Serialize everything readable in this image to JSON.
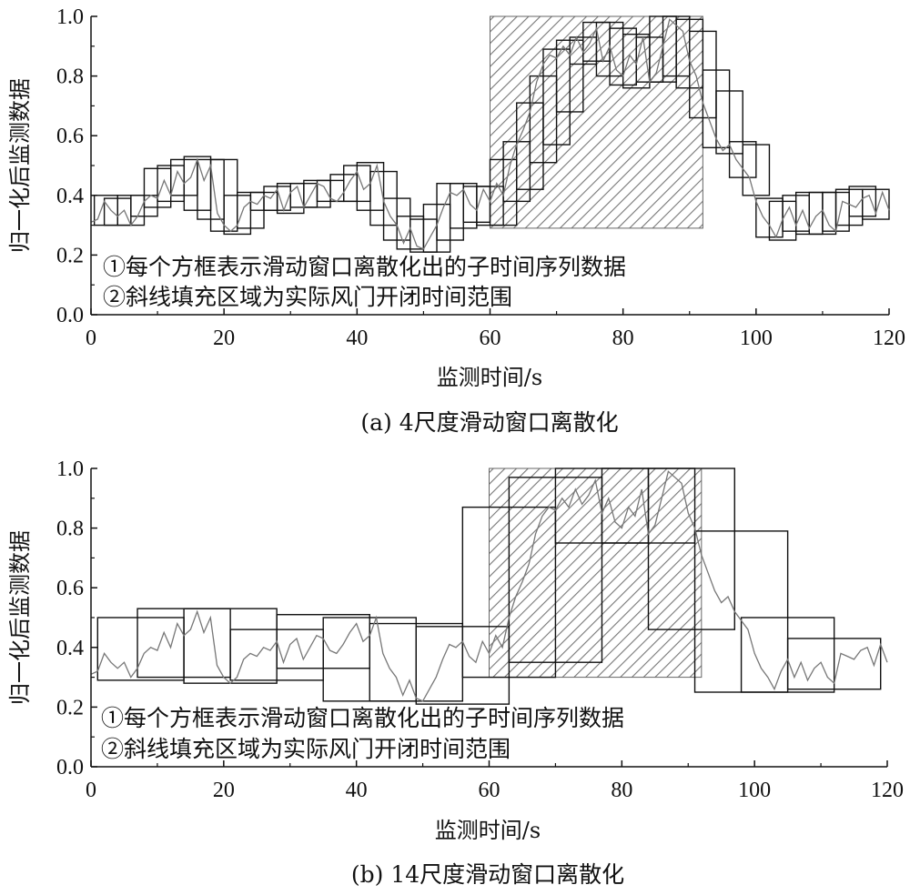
{
  "figure_captions": [
    "(a) 4尺度滑动窗口离散化",
    "(b) 14尺度滑动窗口离散化"
  ],
  "chart_data": [
    {
      "type": "line",
      "caption": "(a) 4尺度滑动窗口离散化",
      "xlabel": "监测时间/s",
      "ylabel": "归一化后监测数据",
      "xlim": [
        0,
        120
      ],
      "ylim": [
        0.0,
        1.0
      ],
      "x_ticks": [
        0,
        20,
        40,
        60,
        80,
        100,
        120
      ],
      "y_ticks": [
        "0.0",
        "0.2",
        "0.4",
        "0.6",
        "0.8",
        "1.0"
      ],
      "annotations": [
        "①每个方框表示滑动窗口离散化出的子时间序列数据",
        "②斜线填充区域为实际风门开闭时间范围"
      ],
      "hatch_region": {
        "x": [
          60,
          92
        ],
        "y": [
          0.29,
          1.0
        ]
      },
      "series": [
        {
          "x": [
            0,
            1,
            2,
            3,
            4,
            5,
            6,
            7,
            8,
            9,
            10,
            11,
            12,
            13,
            14,
            15,
            16,
            17,
            18,
            19,
            20,
            21,
            22,
            23,
            24,
            25,
            26,
            27,
            28,
            29,
            30,
            31,
            32,
            33,
            34,
            35,
            36,
            37,
            38,
            39,
            40,
            41,
            42,
            43,
            44,
            45,
            46,
            47,
            48,
            49,
            50,
            51,
            52,
            53,
            54,
            55,
            56,
            57,
            58,
            59,
            60,
            61,
            62,
            63,
            64,
            65,
            66,
            67,
            68,
            69,
            70,
            71,
            72,
            73,
            74,
            75,
            76,
            77,
            78,
            79,
            80,
            81,
            82,
            83,
            84,
            85,
            86,
            87,
            88,
            89,
            90,
            91,
            92,
            93,
            94,
            95,
            96,
            97,
            98,
            99,
            100,
            101,
            102,
            103,
            104,
            105,
            106,
            107,
            108,
            109,
            110,
            111,
            112,
            113,
            114,
            115,
            116,
            117,
            118,
            119,
            120
          ],
          "y": [
            0.31,
            0.32,
            0.38,
            0.35,
            0.33,
            0.35,
            0.3,
            0.33,
            0.38,
            0.4,
            0.39,
            0.45,
            0.4,
            0.48,
            0.44,
            0.46,
            0.52,
            0.45,
            0.5,
            0.34,
            0.3,
            0.28,
            0.3,
            0.36,
            0.38,
            0.37,
            0.4,
            0.39,
            0.42,
            0.35,
            0.41,
            0.43,
            0.36,
            0.4,
            0.44,
            0.43,
            0.39,
            0.38,
            0.41,
            0.45,
            0.48,
            0.42,
            0.44,
            0.5,
            0.38,
            0.33,
            0.3,
            0.24,
            0.29,
            0.23,
            0.22,
            0.26,
            0.3,
            0.36,
            0.41,
            0.4,
            0.42,
            0.37,
            0.35,
            0.42,
            0.38,
            0.44,
            0.4,
            0.5,
            0.57,
            0.62,
            0.68,
            0.78,
            0.84,
            0.87,
            0.86,
            0.9,
            0.87,
            0.93,
            0.88,
            0.91,
            0.96,
            0.85,
            0.9,
            0.82,
            0.8,
            0.87,
            0.84,
            0.93,
            0.78,
            0.81,
            0.9,
            0.99,
            0.97,
            0.95,
            0.85,
            0.8,
            0.71,
            0.65,
            0.59,
            0.55,
            0.57,
            0.52,
            0.49,
            0.46,
            0.38,
            0.33,
            0.3,
            0.26,
            0.32,
            0.36,
            0.3,
            0.35,
            0.29,
            0.33,
            0.35,
            0.3,
            0.28,
            0.38,
            0.37,
            0.36,
            0.39,
            0.4,
            0.34,
            0.41,
            0.35
          ]
        }
      ],
      "windows": [
        {
          "x0": 0.5,
          "x1": 4,
          "y0": 0.3,
          "y1": 0.4
        },
        {
          "x0": 2,
          "x1": 6,
          "y0": 0.3,
          "y1": 0.39
        },
        {
          "x0": 4,
          "x1": 8,
          "y0": 0.3,
          "y1": 0.4
        },
        {
          "x0": 6,
          "x1": 10,
          "y0": 0.33,
          "y1": 0.4
        },
        {
          "x0": 8,
          "x1": 12,
          "y0": 0.36,
          "y1": 0.49
        },
        {
          "x0": 10,
          "x1": 14,
          "y0": 0.38,
          "y1": 0.5
        },
        {
          "x0": 12,
          "x1": 16,
          "y0": 0.4,
          "y1": 0.52
        },
        {
          "x0": 14,
          "x1": 18,
          "y0": 0.35,
          "y1": 0.53
        },
        {
          "x0": 16,
          "x1": 20,
          "y0": 0.32,
          "y1": 0.52
        },
        {
          "x0": 18,
          "x1": 22,
          "y0": 0.28,
          "y1": 0.52
        },
        {
          "x0": 20,
          "x1": 24,
          "y0": 0.27,
          "y1": 0.4
        },
        {
          "x0": 22,
          "x1": 26,
          "y0": 0.29,
          "y1": 0.41
        },
        {
          "x0": 24,
          "x1": 28,
          "y0": 0.35,
          "y1": 0.41
        },
        {
          "x0": 26,
          "x1": 30,
          "y0": 0.35,
          "y1": 0.43
        },
        {
          "x0": 28,
          "x1": 32,
          "y0": 0.34,
          "y1": 0.44
        },
        {
          "x0": 30,
          "x1": 34,
          "y0": 0.36,
          "y1": 0.44
        },
        {
          "x0": 32,
          "x1": 36,
          "y0": 0.36,
          "y1": 0.45
        },
        {
          "x0": 34,
          "x1": 38,
          "y0": 0.38,
          "y1": 0.45
        },
        {
          "x0": 36,
          "x1": 40,
          "y0": 0.38,
          "y1": 0.47
        },
        {
          "x0": 38,
          "x1": 42,
          "y0": 0.38,
          "y1": 0.5
        },
        {
          "x0": 40,
          "x1": 44,
          "y0": 0.35,
          "y1": 0.51
        },
        {
          "x0": 42,
          "x1": 46,
          "y0": 0.3,
          "y1": 0.48
        },
        {
          "x0": 44,
          "x1": 48,
          "y0": 0.25,
          "y1": 0.39
        },
        {
          "x0": 46,
          "x1": 50,
          "y0": 0.22,
          "y1": 0.33
        },
        {
          "x0": 48,
          "x1": 52,
          "y0": 0.21,
          "y1": 0.32
        },
        {
          "x0": 50,
          "x1": 54,
          "y0": 0.21,
          "y1": 0.37
        },
        {
          "x0": 52,
          "x1": 56,
          "y0": 0.25,
          "y1": 0.44
        },
        {
          "x0": 54,
          "x1": 58,
          "y0": 0.29,
          "y1": 0.44
        },
        {
          "x0": 56,
          "x1": 60,
          "y0": 0.31,
          "y1": 0.43
        },
        {
          "x0": 58,
          "x1": 62,
          "y0": 0.3,
          "y1": 0.43
        },
        {
          "x0": 60,
          "x1": 64,
          "y0": 0.3,
          "y1": 0.52
        },
        {
          "x0": 62,
          "x1": 66,
          "y0": 0.38,
          "y1": 0.58
        },
        {
          "x0": 64,
          "x1": 68,
          "y0": 0.42,
          "y1": 0.71
        },
        {
          "x0": 66,
          "x1": 70,
          "y0": 0.51,
          "y1": 0.8
        },
        {
          "x0": 68,
          "x1": 72,
          "y0": 0.57,
          "y1": 0.89
        },
        {
          "x0": 70,
          "x1": 74,
          "y0": 0.68,
          "y1": 0.92
        },
        {
          "x0": 72,
          "x1": 76,
          "y0": 0.84,
          "y1": 0.93
        },
        {
          "x0": 74,
          "x1": 78,
          "y0": 0.85,
          "y1": 0.98
        },
        {
          "x0": 76,
          "x1": 80,
          "y0": 0.8,
          "y1": 0.98
        },
        {
          "x0": 78,
          "x1": 82,
          "y0": 0.77,
          "y1": 0.96
        },
        {
          "x0": 80,
          "x1": 84,
          "y0": 0.76,
          "y1": 0.94
        },
        {
          "x0": 82,
          "x1": 86,
          "y0": 0.78,
          "y1": 0.93
        },
        {
          "x0": 84,
          "x1": 88,
          "y0": 0.78,
          "y1": 1.0
        },
        {
          "x0": 86,
          "x1": 90,
          "y0": 0.8,
          "y1": 1.0
        },
        {
          "x0": 88,
          "x1": 92,
          "y0": 0.76,
          "y1": 0.99
        },
        {
          "x0": 90,
          "x1": 94,
          "y0": 0.66,
          "y1": 0.95
        },
        {
          "x0": 92,
          "x1": 96,
          "y0": 0.56,
          "y1": 0.82
        },
        {
          "x0": 94,
          "x1": 98,
          "y0": 0.54,
          "y1": 0.75
        },
        {
          "x0": 96,
          "x1": 100,
          "y0": 0.46,
          "y1": 0.58
        },
        {
          "x0": 98,
          "x1": 102,
          "y0": 0.4,
          "y1": 0.57
        },
        {
          "x0": 100,
          "x1": 104,
          "y0": 0.26,
          "y1": 0.39
        },
        {
          "x0": 102,
          "x1": 106,
          "y0": 0.25,
          "y1": 0.38
        },
        {
          "x0": 104,
          "x1": 108,
          "y0": 0.28,
          "y1": 0.4
        },
        {
          "x0": 106,
          "x1": 110,
          "y0": 0.27,
          "y1": 0.41
        },
        {
          "x0": 108,
          "x1": 112,
          "y0": 0.27,
          "y1": 0.41
        },
        {
          "x0": 110,
          "x1": 114,
          "y0": 0.28,
          "y1": 0.41
        },
        {
          "x0": 112,
          "x1": 116,
          "y0": 0.3,
          "y1": 0.42
        },
        {
          "x0": 114,
          "x1": 118,
          "y0": 0.33,
          "y1": 0.43
        },
        {
          "x0": 116,
          "x1": 120,
          "y0": 0.32,
          "y1": 0.42
        }
      ]
    },
    {
      "type": "line",
      "caption": "(b) 14尺度滑动窗口离散化",
      "xlabel": "监测时间/s",
      "ylabel": "归一化后监测数据",
      "xlim": [
        0,
        120
      ],
      "ylim": [
        0.0,
        1.0
      ],
      "x_ticks": [
        0,
        20,
        40,
        60,
        80,
        100,
        120
      ],
      "y_ticks": [
        "0.0",
        "0.2",
        "0.4",
        "0.6",
        "0.8",
        "1.0"
      ],
      "annotations": [
        "①每个方框表示滑动窗口离散化出的子时间序列数据",
        "②斜线填充区域为实际风门开闭时间范围"
      ],
      "hatch_region": {
        "x": [
          60,
          92
        ],
        "y": [
          0.3,
          1.0
        ]
      },
      "series": [
        {
          "x": [
            0,
            1,
            2,
            3,
            4,
            5,
            6,
            7,
            8,
            9,
            10,
            11,
            12,
            13,
            14,
            15,
            16,
            17,
            18,
            19,
            20,
            21,
            22,
            23,
            24,
            25,
            26,
            27,
            28,
            29,
            30,
            31,
            32,
            33,
            34,
            35,
            36,
            37,
            38,
            39,
            40,
            41,
            42,
            43,
            44,
            45,
            46,
            47,
            48,
            49,
            50,
            51,
            52,
            53,
            54,
            55,
            56,
            57,
            58,
            59,
            60,
            61,
            62,
            63,
            64,
            65,
            66,
            67,
            68,
            69,
            70,
            71,
            72,
            73,
            74,
            75,
            76,
            77,
            78,
            79,
            80,
            81,
            82,
            83,
            84,
            85,
            86,
            87,
            88,
            89,
            90,
            91,
            92,
            93,
            94,
            95,
            96,
            97,
            98,
            99,
            100,
            101,
            102,
            103,
            104,
            105,
            106,
            107,
            108,
            109,
            110,
            111,
            112,
            113,
            114,
            115,
            116,
            117,
            118,
            119,
            120
          ],
          "y": [
            0.31,
            0.32,
            0.38,
            0.35,
            0.33,
            0.35,
            0.3,
            0.33,
            0.38,
            0.4,
            0.39,
            0.45,
            0.4,
            0.48,
            0.44,
            0.46,
            0.52,
            0.45,
            0.5,
            0.34,
            0.3,
            0.28,
            0.3,
            0.36,
            0.38,
            0.37,
            0.4,
            0.39,
            0.42,
            0.35,
            0.41,
            0.43,
            0.36,
            0.4,
            0.44,
            0.43,
            0.39,
            0.38,
            0.41,
            0.45,
            0.48,
            0.42,
            0.44,
            0.5,
            0.38,
            0.33,
            0.3,
            0.24,
            0.29,
            0.23,
            0.22,
            0.26,
            0.3,
            0.36,
            0.41,
            0.4,
            0.42,
            0.37,
            0.35,
            0.42,
            0.38,
            0.44,
            0.4,
            0.5,
            0.57,
            0.62,
            0.68,
            0.78,
            0.84,
            0.87,
            0.86,
            0.9,
            0.87,
            0.93,
            0.88,
            0.91,
            0.96,
            0.85,
            0.9,
            0.82,
            0.8,
            0.87,
            0.84,
            0.93,
            0.78,
            0.81,
            0.9,
            0.99,
            0.97,
            0.95,
            0.85,
            0.8,
            0.71,
            0.65,
            0.59,
            0.55,
            0.57,
            0.52,
            0.49,
            0.46,
            0.38,
            0.33,
            0.3,
            0.26,
            0.32,
            0.36,
            0.3,
            0.35,
            0.29,
            0.33,
            0.35,
            0.3,
            0.28,
            0.38,
            0.37,
            0.36,
            0.39,
            0.4,
            0.34,
            0.41,
            0.35
          ]
        }
      ],
      "windows": [
        {
          "x0": 1,
          "x1": 14,
          "y0": 0.29,
          "y1": 0.5
        },
        {
          "x0": 7,
          "x1": 21,
          "y0": 0.3,
          "y1": 0.53
        },
        {
          "x0": 14,
          "x1": 28,
          "y0": 0.28,
          "y1": 0.53
        },
        {
          "x0": 21,
          "x1": 35,
          "y0": 0.29,
          "y1": 0.46
        },
        {
          "x0": 28,
          "x1": 42,
          "y0": 0.33,
          "y1": 0.51
        },
        {
          "x0": 35,
          "x1": 49,
          "y0": 0.22,
          "y1": 0.5
        },
        {
          "x0": 42,
          "x1": 56,
          "y0": 0.22,
          "y1": 0.48
        },
        {
          "x0": 49,
          "x1": 63,
          "y0": 0.21,
          "y1": 0.47
        },
        {
          "x0": 56,
          "x1": 70,
          "y0": 0.3,
          "y1": 0.87
        },
        {
          "x0": 63,
          "x1": 77,
          "y0": 0.35,
          "y1": 0.97
        },
        {
          "x0": 70,
          "x1": 84,
          "y0": 0.75,
          "y1": 1.0
        },
        {
          "x0": 77,
          "x1": 91,
          "y0": 0.75,
          "y1": 1.0
        },
        {
          "x0": 84,
          "x1": 97,
          "y0": 0.46,
          "y1": 1.0
        },
        {
          "x0": 91,
          "x1": 105,
          "y0": 0.25,
          "y1": 0.79
        },
        {
          "x0": 98,
          "x1": 112,
          "y0": 0.25,
          "y1": 0.5
        },
        {
          "x0": 105,
          "x1": 119,
          "y0": 0.26,
          "y1": 0.43
        }
      ]
    }
  ]
}
